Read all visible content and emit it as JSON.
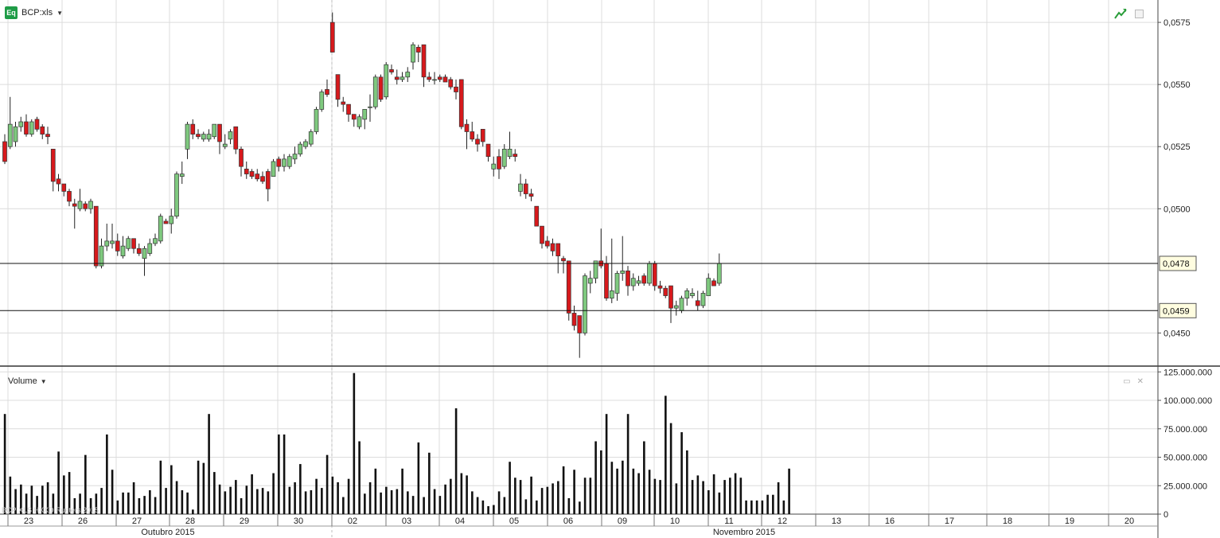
{
  "header": {
    "symbol": "BCP:xls",
    "icon": "Eq"
  },
  "volume_panel": {
    "label": "Volume"
  },
  "watermark": "BCP:XLS HXXD Rueters 2015",
  "colors": {
    "up": "#7fc97f",
    "down": "#d7191c",
    "grid": "#dcdcdc"
  },
  "chart_data": [
    {
      "type": "candlestick",
      "title": "BCP:xls",
      "ylim": [
        0.0437,
        0.0584
      ],
      "y_ticks": [
        "0,0575",
        "0,0550",
        "0,0525",
        "0,0500",
        "0,0450"
      ],
      "y_tick_values": [
        0.0575,
        0.055,
        0.0525,
        0.05,
        0.045
      ],
      "x_tick_labels": [
        "23",
        "26",
        "27",
        "28",
        "29",
        "30",
        "02",
        "03",
        "04",
        "05",
        "06",
        "09",
        "10",
        "11",
        "12",
        "13",
        "16",
        "17",
        "18",
        "19",
        "20"
      ],
      "month_labels": [
        "Outubro 2015",
        "Novembro 2015"
      ],
      "horizontal_lines": [
        {
          "label": "0,0478",
          "value": 0.0478
        },
        {
          "label": "0,0459",
          "value": 0.0459
        }
      ],
      "grid": true,
      "candles": [
        [
          0.0527,
          0.053,
          0.0518,
          0.0519
        ],
        [
          0.0525,
          0.0545,
          0.0524,
          0.0534
        ],
        [
          0.0527,
          0.0535,
          0.0525,
          0.0533
        ],
        [
          0.0533,
          0.0537,
          0.0531,
          0.0535
        ],
        [
          0.0535,
          0.0538,
          0.0529,
          0.053
        ],
        [
          0.053,
          0.0536,
          0.0529,
          0.0535
        ],
        [
          0.0536,
          0.0537,
          0.0531,
          0.0532
        ],
        [
          0.0533,
          0.0534,
          0.0528,
          0.053
        ],
        [
          0.053,
          0.0533,
          0.0526,
          0.0529
        ],
        [
          0.0524,
          0.0524,
          0.0507,
          0.0511
        ],
        [
          0.0512,
          0.0514,
          0.0507,
          0.051
        ],
        [
          0.051,
          0.051,
          0.0505,
          0.0507
        ],
        [
          0.0507,
          0.0508,
          0.0501,
          0.0503
        ],
        [
          0.0502,
          0.0504,
          0.0492,
          0.0501
        ],
        [
          0.05,
          0.0508,
          0.0499,
          0.0503
        ],
        [
          0.0502,
          0.0503,
          0.0499,
          0.05
        ],
        [
          0.05,
          0.0504,
          0.0498,
          0.0503
        ],
        [
          0.0501,
          0.0501,
          0.0476,
          0.0477
        ],
        [
          0.0477,
          0.0488,
          0.0476,
          0.0485
        ],
        [
          0.0485,
          0.0494,
          0.0483,
          0.0487
        ],
        [
          0.0486,
          0.0494,
          0.0484,
          0.0487
        ],
        [
          0.0487,
          0.049,
          0.0481,
          0.0483
        ],
        [
          0.0481,
          0.0489,
          0.048,
          0.0485
        ],
        [
          0.0484,
          0.0489,
          0.0483,
          0.0488
        ],
        [
          0.0488,
          0.0488,
          0.0482,
          0.0484
        ],
        [
          0.0484,
          0.0486,
          0.0481,
          0.0482
        ],
        [
          0.048,
          0.0485,
          0.0473,
          0.0484
        ],
        [
          0.0482,
          0.0488,
          0.0481,
          0.0486
        ],
        [
          0.0486,
          0.049,
          0.0485,
          0.0488
        ],
        [
          0.0487,
          0.0498,
          0.0486,
          0.0497
        ],
        [
          0.0495,
          0.0496,
          0.0494,
          0.0494
        ],
        [
          0.0494,
          0.05,
          0.049,
          0.0497
        ],
        [
          0.0497,
          0.0515,
          0.0496,
          0.0514
        ],
        [
          0.0513,
          0.0519,
          0.051,
          0.0514
        ],
        [
          0.0524,
          0.0535,
          0.052,
          0.0534
        ],
        [
          0.0534,
          0.0536,
          0.0528,
          0.053
        ],
        [
          0.053,
          0.0532,
          0.0528,
          0.0529
        ],
        [
          0.0528,
          0.0531,
          0.0527,
          0.053
        ],
        [
          0.0528,
          0.0532,
          0.0527,
          0.053
        ],
        [
          0.0529,
          0.0534,
          0.0528,
          0.0534
        ],
        [
          0.0534,
          0.0534,
          0.0522,
          0.0527
        ],
        [
          0.0525,
          0.053,
          0.0524,
          0.0526
        ],
        [
          0.0528,
          0.0532,
          0.0526,
          0.0531
        ],
        [
          0.0533,
          0.0533,
          0.0522,
          0.0524
        ],
        [
          0.0524,
          0.0525,
          0.0513,
          0.0517
        ],
        [
          0.0516,
          0.0519,
          0.0512,
          0.0514
        ],
        [
          0.0515,
          0.0516,
          0.0512,
          0.0513
        ],
        [
          0.0514,
          0.0516,
          0.0511,
          0.0512
        ],
        [
          0.0513,
          0.0515,
          0.051,
          0.0511
        ],
        [
          0.0515,
          0.0516,
          0.0503,
          0.0508
        ],
        [
          0.0513,
          0.052,
          0.0513,
          0.0519
        ],
        [
          0.052,
          0.0521,
          0.0515,
          0.0517
        ],
        [
          0.0517,
          0.0522,
          0.0515,
          0.052
        ],
        [
          0.0517,
          0.0522,
          0.0516,
          0.0521
        ],
        [
          0.052,
          0.0525,
          0.0518,
          0.0522
        ],
        [
          0.0522,
          0.0527,
          0.0521,
          0.0526
        ],
        [
          0.0525,
          0.0528,
          0.0524,
          0.0527
        ],
        [
          0.0526,
          0.0532,
          0.0525,
          0.0531
        ],
        [
          0.0531,
          0.0541,
          0.053,
          0.054
        ],
        [
          0.054,
          0.0548,
          0.0539,
          0.0547
        ],
        [
          0.0548,
          0.0552,
          0.0545,
          0.0546
        ],
        [
          0.0575,
          0.0579,
          0.0563,
          0.0563
        ],
        [
          0.0554,
          0.0554,
          0.0541,
          0.0544
        ],
        [
          0.0543,
          0.0545,
          0.0539,
          0.0542
        ],
        [
          0.0542,
          0.0542,
          0.0535,
          0.0538
        ],
        [
          0.0538,
          0.0538,
          0.0533,
          0.0536
        ],
        [
          0.0533,
          0.0538,
          0.0532,
          0.0537
        ],
        [
          0.0536,
          0.054,
          0.0532,
          0.054
        ],
        [
          0.0541,
          0.0546,
          0.0535,
          0.0541
        ],
        [
          0.0541,
          0.0554,
          0.054,
          0.0553
        ],
        [
          0.0553,
          0.0554,
          0.0543,
          0.0544
        ],
        [
          0.0545,
          0.0559,
          0.0544,
          0.0558
        ],
        [
          0.0556,
          0.0558,
          0.0554,
          0.0555
        ],
        [
          0.0553,
          0.0556,
          0.055,
          0.0552
        ],
        [
          0.0552,
          0.0555,
          0.0551,
          0.0553
        ],
        [
          0.0553,
          0.0557,
          0.0551,
          0.0555
        ],
        [
          0.0559,
          0.0567,
          0.0556,
          0.0566
        ],
        [
          0.0565,
          0.0566,
          0.0559,
          0.0563
        ],
        [
          0.0566,
          0.0566,
          0.0549,
          0.0553
        ],
        [
          0.0553,
          0.0555,
          0.0551,
          0.0552
        ],
        [
          0.0552,
          0.0555,
          0.055,
          0.0552
        ],
        [
          0.0553,
          0.0554,
          0.0551,
          0.0552
        ],
        [
          0.0553,
          0.0554,
          0.0551,
          0.0551
        ],
        [
          0.0552,
          0.0553,
          0.0548,
          0.0549
        ],
        [
          0.0549,
          0.0552,
          0.0544,
          0.0547
        ],
        [
          0.0552,
          0.0552,
          0.0532,
          0.0533
        ],
        [
          0.0534,
          0.0536,
          0.0524,
          0.0531
        ],
        [
          0.0531,
          0.0535,
          0.0527,
          0.0528
        ],
        [
          0.0528,
          0.053,
          0.0523,
          0.0526
        ],
        [
          0.0532,
          0.0532,
          0.0525,
          0.0527
        ],
        [
          0.0526,
          0.0526,
          0.0519,
          0.0521
        ],
        [
          0.0516,
          0.0521,
          0.0513,
          0.0518
        ],
        [
          0.0521,
          0.0524,
          0.0512,
          0.0516
        ],
        [
          0.0517,
          0.0526,
          0.0516,
          0.0524
        ],
        [
          0.0521,
          0.0531,
          0.052,
          0.0524
        ],
        [
          0.0522,
          0.0524,
          0.0519,
          0.0521
        ],
        [
          0.0507,
          0.0514,
          0.0505,
          0.051
        ],
        [
          0.051,
          0.0512,
          0.0504,
          0.0506
        ],
        [
          0.0506,
          0.0508,
          0.0503,
          0.0505
        ],
        [
          0.0501,
          0.0501,
          0.0493,
          0.0493
        ],
        [
          0.0493,
          0.0493,
          0.0484,
          0.0486
        ],
        [
          0.0487,
          0.0489,
          0.0484,
          0.0485
        ],
        [
          0.0486,
          0.0488,
          0.0481,
          0.0483
        ],
        [
          0.0486,
          0.0486,
          0.0474,
          0.0481
        ],
        [
          0.048,
          0.0481,
          0.0474,
          0.0479
        ],
        [
          0.0479,
          0.0479,
          0.0455,
          0.0458
        ],
        [
          0.0458,
          0.0461,
          0.0451,
          0.0453
        ],
        [
          0.0457,
          0.0457,
          0.044,
          0.045
        ],
        [
          0.045,
          0.0474,
          0.0449,
          0.0473
        ],
        [
          0.047,
          0.0475,
          0.0466,
          0.0472
        ],
        [
          0.0472,
          0.0479,
          0.047,
          0.0479
        ],
        [
          0.0479,
          0.0492,
          0.0476,
          0.0477
        ],
        [
          0.0478,
          0.0481,
          0.0463,
          0.0464
        ],
        [
          0.0464,
          0.0488,
          0.0462,
          0.0467
        ],
        [
          0.0466,
          0.0475,
          0.0463,
          0.0474
        ],
        [
          0.0474,
          0.0489,
          0.0471,
          0.0475
        ],
        [
          0.0475,
          0.0477,
          0.0465,
          0.0469
        ],
        [
          0.0469,
          0.0474,
          0.0467,
          0.0472
        ],
        [
          0.047,
          0.0473,
          0.0469,
          0.0471
        ],
        [
          0.0473,
          0.0474,
          0.0469,
          0.047
        ],
        [
          0.047,
          0.0479,
          0.0469,
          0.0478
        ],
        [
          0.0478,
          0.0479,
          0.0467,
          0.0469
        ],
        [
          0.0469,
          0.0471,
          0.0466,
          0.0468
        ],
        [
          0.0468,
          0.0469,
          0.0464,
          0.0465
        ],
        [
          0.0469,
          0.0469,
          0.0454,
          0.046
        ],
        [
          0.046,
          0.0463,
          0.0457,
          0.0461
        ],
        [
          0.0459,
          0.0465,
          0.0458,
          0.0464
        ],
        [
          0.0464,
          0.0468,
          0.0461,
          0.0467
        ],
        [
          0.0465,
          0.0468,
          0.0464,
          0.0466
        ],
        [
          0.0463,
          0.0467,
          0.0459,
          0.0461
        ],
        [
          0.0461,
          0.0467,
          0.046,
          0.0466
        ],
        [
          0.0465,
          0.0474,
          0.0465,
          0.0472
        ],
        [
          0.0471,
          0.0472,
          0.0469,
          0.0469
        ],
        [
          0.047,
          0.0482,
          0.0469,
          0.0478
        ]
      ]
    },
    {
      "type": "bar",
      "title": "Volume",
      "ylim": [
        0,
        128000000
      ],
      "y_ticks": [
        "125.000.000",
        "100.000.000",
        "75.000.000",
        "50.000.000",
        "25.000.000",
        "0"
      ],
      "y_tick_values": [
        125000000,
        100000000,
        75000000,
        50000000,
        25000000,
        0
      ],
      "values": [
        88,
        33,
        22,
        26,
        18,
        25,
        16,
        25,
        28,
        18,
        55,
        34,
        37,
        14,
        18,
        52,
        14,
        18,
        23,
        70,
        39,
        12,
        19,
        19,
        28,
        14,
        16,
        21,
        15,
        47,
        23,
        43,
        29,
        21,
        19,
        4,
        47,
        45,
        88,
        37,
        26,
        20,
        24,
        30,
        14,
        25,
        35,
        22,
        23,
        20,
        36,
        70,
        70,
        24,
        28,
        44,
        20,
        21,
        31,
        23,
        52,
        33,
        28,
        15,
        31,
        124,
        64,
        18,
        28,
        40,
        19,
        24,
        21,
        22,
        40,
        20,
        16,
        63,
        15,
        54,
        22,
        16,
        26,
        31,
        93,
        36,
        34,
        20,
        15,
        12,
        7,
        8,
        20,
        15,
        46,
        32,
        30,
        13,
        33,
        12,
        23,
        24,
        27,
        29,
        42,
        14,
        39,
        11,
        32,
        32,
        64,
        56,
        88,
        46,
        40,
        47,
        88,
        40,
        36,
        64,
        39,
        31,
        30,
        104,
        80,
        27,
        72,
        56,
        30,
        34,
        29,
        21,
        35,
        19,
        30,
        32,
        36,
        32,
        12,
        12,
        12,
        12,
        17,
        17,
        28,
        12,
        40
      ]
    }
  ]
}
